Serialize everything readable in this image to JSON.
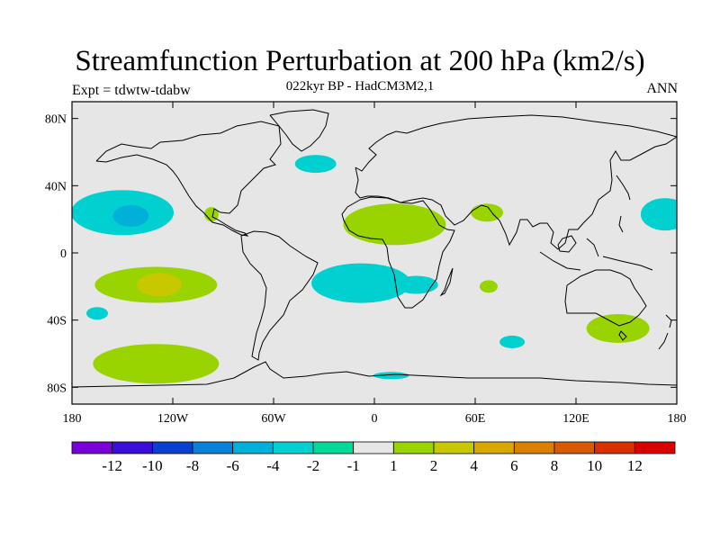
{
  "title": "Streamfunction Perturbation at 200 hPa (km2/s)",
  "subtitle": "022kyr BP - HadCM3M2,1",
  "experiment": "Expt = tdwtw-tdabw",
  "season": "ANN",
  "y_labels": [
    "80N",
    "40N",
    "0",
    "40S",
    "80S"
  ],
  "x_labels": [
    "180",
    "120W",
    "60W",
    "0",
    "60E",
    "120E",
    "180"
  ],
  "colors": {
    "ocean_background": "#e6e6e6",
    "coastline": "#000000"
  },
  "colorbar": {
    "bins": [
      "#7a00d9",
      "#3b0fd9",
      "#0a40d0",
      "#0a80d8",
      "#00b0d8",
      "#00d0d0",
      "#00d898",
      "#e6e6e6",
      "#99d300",
      "#c8c800",
      "#d8a800",
      "#d88000",
      "#d85a00",
      "#d83000",
      "#d80000"
    ],
    "labels": [
      "-12",
      "-10",
      "-8",
      "-6",
      "-4",
      "-2",
      "-1",
      "1",
      "2",
      "4",
      "6",
      "8",
      "10",
      "12"
    ]
  },
  "chart_data": {
    "type": "heatmap",
    "projection": "cylindrical equidistant",
    "xlim": [
      -180,
      180
    ],
    "ylim": [
      -90,
      90
    ],
    "units": "km2/s",
    "anomalies": [
      {
        "region": "North Pacific subtropics",
        "lon": -150,
        "lat": 24,
        "level": -2
      },
      {
        "region": "North Pacific core",
        "lon": -145,
        "lat": 22,
        "level": -4
      },
      {
        "region": "Gulf of Mexico",
        "lon": -97,
        "lat": 23,
        "level": 2
      },
      {
        "region": "North Atlantic",
        "lon": -35,
        "lat": 53,
        "level": -2
      },
      {
        "region": "North Africa",
        "lon": 12,
        "lat": 17,
        "level": 2
      },
      {
        "region": "Arabia / India",
        "lon": 67,
        "lat": 24,
        "level": 2
      },
      {
        "region": "West Pacific",
        "lon": 173,
        "lat": 23,
        "level": -2
      },
      {
        "region": "South Pacific",
        "lon": -130,
        "lat": -19,
        "level": 2
      },
      {
        "region": "South Pacific core",
        "lon": -128,
        "lat": -19,
        "level": 4
      },
      {
        "region": "South Pacific west",
        "lon": -165,
        "lat": -36,
        "level": -2
      },
      {
        "region": "South Atlantic",
        "lon": -8,
        "lat": -18,
        "level": -2
      },
      {
        "region": "South Africa east",
        "lon": 25,
        "lat": -19,
        "level": -2
      },
      {
        "region": "Indian Ocean",
        "lon": 68,
        "lat": -20,
        "level": 2
      },
      {
        "region": "South Indian Ocean",
        "lon": 82,
        "lat": -53,
        "level": -2
      },
      {
        "region": "Southeast Australia",
        "lon": 145,
        "lat": -45,
        "level": 2
      },
      {
        "region": "Southern Ocean Pacific",
        "lon": -130,
        "lat": -66,
        "level": 2
      },
      {
        "region": "Antarctic coast",
        "lon": 10,
        "lat": -73,
        "level": -2
      }
    ]
  }
}
